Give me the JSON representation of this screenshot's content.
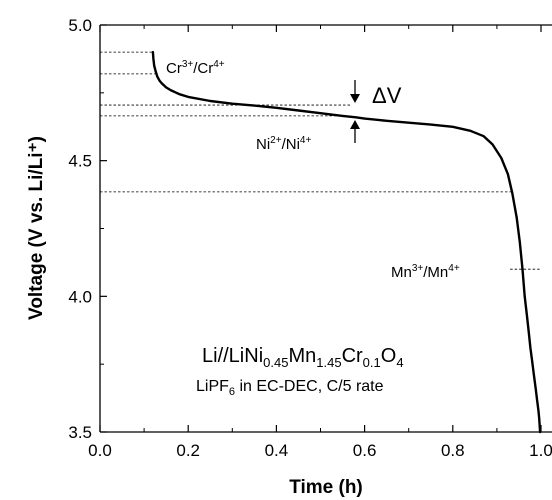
{
  "chart_data": {
    "type": "line",
    "xlabel": "Time (h)",
    "ylabel": "Voltage (V vs. Li/Li⁺)",
    "xlim": [
      0.0,
      1.0
    ],
    "ylim": [
      3.5,
      5.0
    ],
    "x_ticks": [
      "0.0",
      "0.2",
      "0.4",
      "0.6",
      "0.8",
      "1.0"
    ],
    "y_ticks": [
      "3.5",
      "4.0",
      "4.5",
      "5.0"
    ],
    "grid": false,
    "legend": "none",
    "series": [
      {
        "color": "#000000",
        "x": [
          0.12,
          0.121,
          0.123,
          0.126,
          0.13,
          0.135,
          0.14,
          0.15,
          0.16,
          0.18,
          0.2,
          0.25,
          0.3,
          0.35,
          0.4,
          0.45,
          0.5,
          0.55,
          0.58,
          0.6,
          0.65,
          0.7,
          0.75,
          0.8,
          0.84,
          0.87,
          0.89,
          0.91,
          0.925,
          0.935,
          0.945,
          0.952,
          0.958,
          0.963,
          0.968,
          0.972,
          0.976,
          0.98,
          0.984,
          0.988,
          0.991,
          0.994,
          0.996,
          0.998
        ],
        "y": [
          4.9,
          4.875,
          4.85,
          4.83,
          4.81,
          4.795,
          4.785,
          4.77,
          4.76,
          4.745,
          4.735,
          4.72,
          4.71,
          4.703,
          4.695,
          4.685,
          4.675,
          4.665,
          4.66,
          4.655,
          4.647,
          4.64,
          4.633,
          4.625,
          4.61,
          4.59,
          4.56,
          4.51,
          4.45,
          4.38,
          4.29,
          4.2,
          4.1,
          4.0,
          3.93,
          3.87,
          3.81,
          3.76,
          3.71,
          3.66,
          3.62,
          3.58,
          3.55,
          3.5
        ]
      }
    ],
    "reference_lines": [
      {
        "y": 4.9,
        "x_end": 0.12
      },
      {
        "y": 4.82,
        "x_end": 0.125
      },
      {
        "y": 4.705,
        "x_end": 0.57
      },
      {
        "y": 4.665,
        "x_end": 0.57
      },
      {
        "y": 4.385,
        "x_end": 0.935
      },
      {
        "y": 4.1,
        "x_start": 0.93,
        "x_end": 1.0
      }
    ],
    "annotations": {
      "cr_couple": {
        "base1": "Cr",
        "sup1": "3+",
        "sep": "/Cr",
        "sup2": "4+"
      },
      "ni_couple": {
        "base1": "Ni",
        "sup1": "2+",
        "sep": "/Ni",
        "sup2": "4+"
      },
      "mn_couple": {
        "base1": "Mn",
        "sup1": "3+",
        "sep": "/Mn",
        "sup2": "4+"
      },
      "delta_v": "ΔV",
      "cell_title": {
        "p1": "Li//LiNi",
        "s1": "0.45",
        "p2": "Mn",
        "s2": "1.45",
        "p3": "Cr",
        "s3": "0.1",
        "p4": "O",
        "s4": "4"
      },
      "cell_subtitle": {
        "p1": "LiPF",
        "s1": "6",
        "p2": " in EC-DEC, C/5 rate"
      }
    }
  }
}
